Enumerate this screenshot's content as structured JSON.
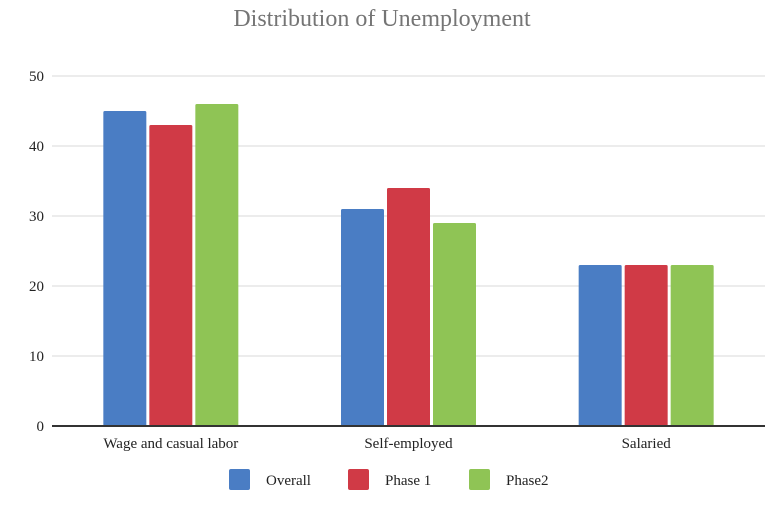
{
  "chart_data": {
    "type": "bar",
    "title": "Distribution of Unemployment",
    "xlabel": "",
    "ylabel": "",
    "categories": [
      "Wage and casual labor",
      "Self-employed",
      "Salaried"
    ],
    "series": [
      {
        "name": "Overall",
        "color": "#4a7dc4",
        "values": [
          45,
          31,
          23
        ]
      },
      {
        "name": "Phase 1",
        "color": "#d03a46",
        "values": [
          43,
          34,
          23
        ]
      },
      {
        "name": "Phase2",
        "color": "#8fc455",
        "values": [
          46,
          29,
          23
        ]
      }
    ],
    "ylim": [
      0,
      50
    ],
    "yticks": [
      0,
      10,
      20,
      30,
      40,
      50
    ],
    "grid": true,
    "legend_position": "bottom"
  }
}
